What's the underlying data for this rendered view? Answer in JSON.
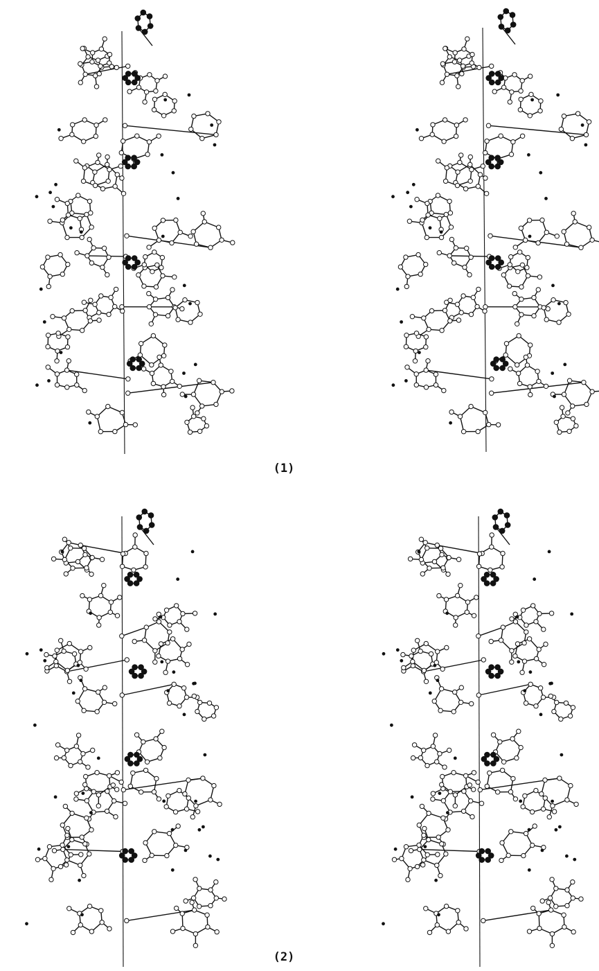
{
  "figure": {
    "panels": [
      {
        "id": "1",
        "label": "(1)",
        "description_note": "",
        "views": [
          "left-stereo-view",
          "right-stereo-view"
        ],
        "atom_styles": {
          "carbon": "open-circle",
          "heteroatom": "filled-circle",
          "water": "isolated-dot"
        }
      },
      {
        "id": "2",
        "label": "(2)",
        "views": [
          "left-stereo-view",
          "right-stereo-view"
        ],
        "atom_styles": {
          "carbon": "open-circle",
          "heteroatom": "filled-circle",
          "water": "isolated-dot"
        }
      }
    ],
    "colors": {
      "ink": "#111111",
      "open_atom_fill": "#ffffff",
      "background": "#ffffff"
    }
  }
}
